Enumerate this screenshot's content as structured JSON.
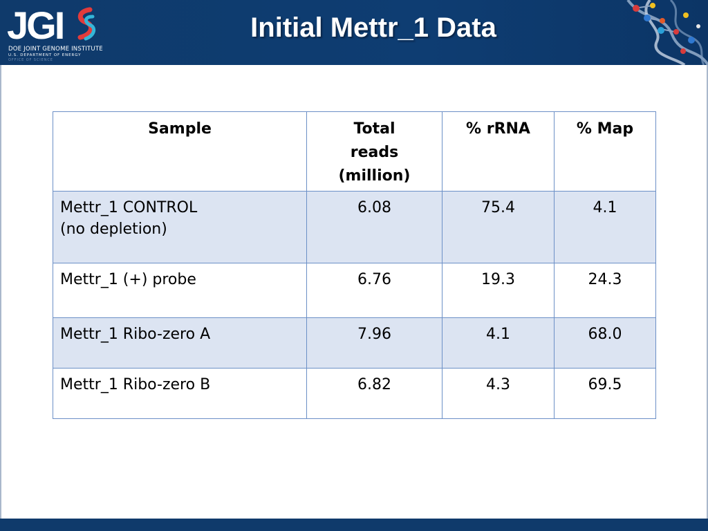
{
  "header": {
    "title": "Initial Mettr_1 Data",
    "logo_text": "JGI",
    "logo_line1": "DOE JOINT GENOME INSTITUTE",
    "logo_line2": "U.S. DEPARTMENT OF ENERGY",
    "logo_line3": "OFFICE OF SCIENCE",
    "background_color": "#0f3a6b",
    "dna_graphic": "dna-helix-icon"
  },
  "table": {
    "columns": [
      "Sample",
      "Total\nreads\n(million)",
      "% rRNA",
      "% Map"
    ],
    "rows": [
      {
        "sample": "Mettr_1 CONTROL\n(no depletion)",
        "total_reads": "6.08",
        "rrna": "75.4",
        "map": "4.1"
      },
      {
        "sample": "Mettr_1 (+) probe",
        "total_reads": "6.76",
        "rrna": "19.3",
        "map": "24.3"
      },
      {
        "sample": "Mettr_1 Ribo-zero A",
        "total_reads": "7.96",
        "rrna": "4.1",
        "map": "68.0"
      },
      {
        "sample": "Mettr_1 Ribo-zero B",
        "total_reads": "6.82",
        "rrna": "4.3",
        "map": "69.5"
      }
    ],
    "border_color": "#6b8fc6",
    "shaded_row_color": "#dce4f2"
  }
}
